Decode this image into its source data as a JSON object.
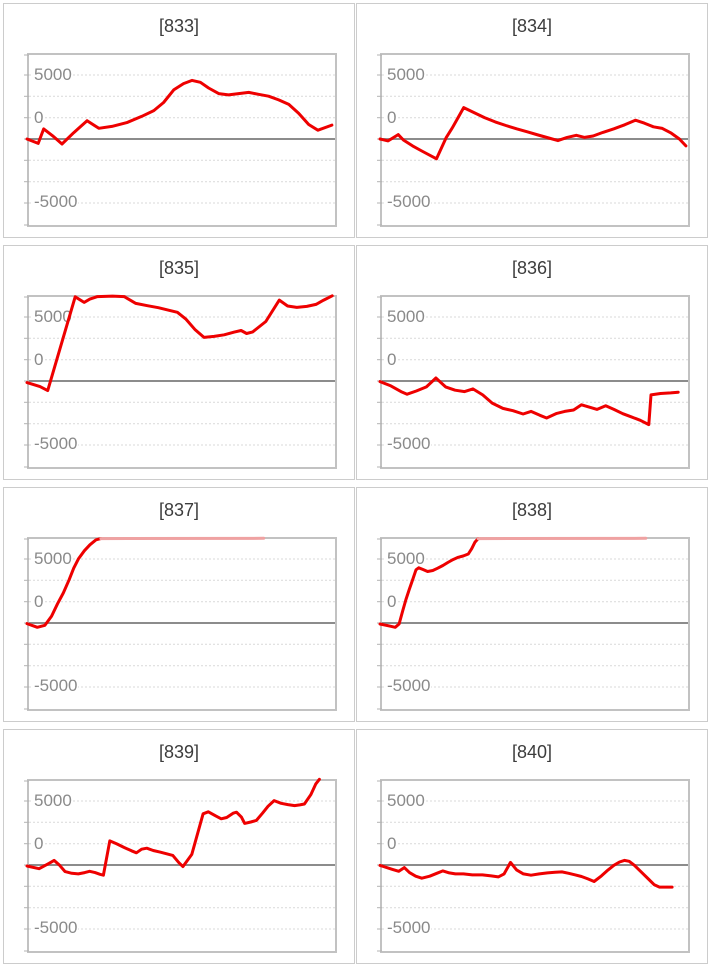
{
  "page": {
    "background": "#ffffff",
    "layout": "2x4 grid of slump line charts"
  },
  "axis": {
    "y_tick_labels": {
      "top": "5000",
      "zero": "0",
      "bottom": "-5000"
    },
    "y_tick_values": [
      5000,
      0,
      -5000
    ],
    "ylim": [
      -6800,
      6800
    ],
    "grid": "7 dashed horizontal gridlines + solid zero line",
    "legend": "none",
    "x_axis_labels": "none"
  },
  "colors": {
    "series_line": "#ee0000",
    "series_line_capped": "#efa2a2",
    "zero_line": "#8c8c8c",
    "gridline": "#d9d9d9",
    "plot_border": "#c2c2c2",
    "tick": "#b3b3b3",
    "panel_border": "#cccccc",
    "axis_label": "#8a8a8a",
    "title_text": "#3c3c3c"
  },
  "chart_data": [
    {
      "id": "833",
      "title": "[833]",
      "type": "line",
      "cap_start_index": null,
      "points": [
        [
          0,
          0
        ],
        [
          0.03,
          -350
        ],
        [
          0.048,
          800
        ],
        [
          0.077,
          250
        ],
        [
          0.108,
          -400
        ],
        [
          0.146,
          500
        ],
        [
          0.19,
          1450
        ],
        [
          0.228,
          850
        ],
        [
          0.271,
          1000
        ],
        [
          0.32,
          1300
        ],
        [
          0.369,
          1800
        ],
        [
          0.408,
          2250
        ],
        [
          0.44,
          2900
        ],
        [
          0.473,
          3900
        ],
        [
          0.505,
          4400
        ],
        [
          0.533,
          4650
        ],
        [
          0.56,
          4500
        ],
        [
          0.587,
          4050
        ],
        [
          0.62,
          3600
        ],
        [
          0.652,
          3500
        ],
        [
          0.685,
          3600
        ],
        [
          0.718,
          3700
        ],
        [
          0.75,
          3550
        ],
        [
          0.783,
          3400
        ],
        [
          0.816,
          3100
        ],
        [
          0.849,
          2750
        ],
        [
          0.881,
          2050
        ],
        [
          0.914,
          1150
        ],
        [
          0.944,
          700
        ],
        [
          0.99,
          1100
        ]
      ]
    },
    {
      "id": "834",
      "title": "[834]",
      "type": "line",
      "cap_start_index": null,
      "points": [
        [
          0,
          0
        ],
        [
          0.02,
          -150
        ],
        [
          0.053,
          350
        ],
        [
          0.07,
          -80
        ],
        [
          0.1,
          -550
        ],
        [
          0.13,
          -950
        ],
        [
          0.178,
          -1570
        ],
        [
          0.21,
          130
        ],
        [
          0.23,
          900
        ],
        [
          0.267,
          2490
        ],
        [
          0.3,
          2100
        ],
        [
          0.335,
          1700
        ],
        [
          0.37,
          1360
        ],
        [
          0.405,
          1070
        ],
        [
          0.44,
          810
        ],
        [
          0.475,
          575
        ],
        [
          0.51,
          315
        ],
        [
          0.545,
          80
        ],
        [
          0.575,
          -130
        ],
        [
          0.605,
          130
        ],
        [
          0.635,
          290
        ],
        [
          0.662,
          130
        ],
        [
          0.69,
          235
        ],
        [
          0.722,
          525
        ],
        [
          0.758,
          810
        ],
        [
          0.793,
          1125
        ],
        [
          0.828,
          1490
        ],
        [
          0.857,
          1260
        ],
        [
          0.887,
          970
        ],
        [
          0.916,
          840
        ],
        [
          0.945,
          470
        ],
        [
          0.972,
          0
        ],
        [
          0.993,
          -550
        ]
      ]
    },
    {
      "id": "835",
      "title": "[835]",
      "type": "line",
      "cap_start_index": null,
      "points": [
        [
          0,
          -130
        ],
        [
          0.036,
          -445
        ],
        [
          0.061,
          -760
        ],
        [
          0.151,
          6680
        ],
        [
          0.18,
          6235
        ],
        [
          0.199,
          6500
        ],
        [
          0.224,
          6700
        ],
        [
          0.273,
          6740
        ],
        [
          0.311,
          6700
        ],
        [
          0.349,
          6155
        ],
        [
          0.387,
          5975
        ],
        [
          0.423,
          5815
        ],
        [
          0.458,
          5610
        ],
        [
          0.485,
          5450
        ],
        [
          0.512,
          4925
        ],
        [
          0.543,
          4060
        ],
        [
          0.572,
          3460
        ],
        [
          0.605,
          3540
        ],
        [
          0.638,
          3670
        ],
        [
          0.671,
          3880
        ],
        [
          0.693,
          4010
        ],
        [
          0.711,
          3770
        ],
        [
          0.731,
          3900
        ],
        [
          0.774,
          4720
        ],
        [
          0.818,
          6420
        ],
        [
          0.845,
          5950
        ],
        [
          0.875,
          5840
        ],
        [
          0.908,
          5920
        ],
        [
          0.938,
          6080
        ],
        [
          0.963,
          6420
        ],
        [
          0.991,
          6760
        ]
      ]
    },
    {
      "id": "836",
      "title": "[836]",
      "type": "line",
      "cap_start_index": null,
      "points": [
        [
          0,
          -50
        ],
        [
          0.029,
          -390
        ],
        [
          0.062,
          -840
        ],
        [
          0.082,
          -1050
        ],
        [
          0.112,
          -790
        ],
        [
          0.145,
          -470
        ],
        [
          0.176,
          235
        ],
        [
          0.208,
          -470
        ],
        [
          0.239,
          -730
        ],
        [
          0.27,
          -840
        ],
        [
          0.297,
          -630
        ],
        [
          0.329,
          -1100
        ],
        [
          0.36,
          -1755
        ],
        [
          0.395,
          -2175
        ],
        [
          0.428,
          -2360
        ],
        [
          0.461,
          -2620
        ],
        [
          0.487,
          -2410
        ],
        [
          0.516,
          -2725
        ],
        [
          0.538,
          -2935
        ],
        [
          0.571,
          -2570
        ],
        [
          0.597,
          -2410
        ],
        [
          0.626,
          -2305
        ],
        [
          0.652,
          -1885
        ],
        [
          0.681,
          -2095
        ],
        [
          0.703,
          -2255
        ],
        [
          0.731,
          -1965
        ],
        [
          0.758,
          -2255
        ],
        [
          0.787,
          -2595
        ],
        [
          0.813,
          -2830
        ],
        [
          0.844,
          -3120
        ],
        [
          0.872,
          -3460
        ],
        [
          0.879,
          -1100
        ],
        [
          0.91,
          -995
        ],
        [
          0.943,
          -945
        ],
        [
          0.968,
          -890
        ]
      ]
    },
    {
      "id": "837",
      "title": "[837]",
      "type": "line",
      "cap_start_index": 12,
      "points": [
        [
          0,
          -50
        ],
        [
          0.027,
          -340
        ],
        [
          0.052,
          -180
        ],
        [
          0.074,
          550
        ],
        [
          0.093,
          1520
        ],
        [
          0.112,
          2380
        ],
        [
          0.131,
          3430
        ],
        [
          0.146,
          4350
        ],
        [
          0.162,
          5110
        ],
        [
          0.181,
          5740
        ],
        [
          0.199,
          6210
        ],
        [
          0.219,
          6600
        ],
        [
          0.235,
          6700
        ],
        [
          0.767,
          6720
        ]
      ]
    },
    {
      "id": "838",
      "title": "[838]",
      "type": "line",
      "cap_start_index": 22,
      "points": [
        [
          0,
          -80
        ],
        [
          0.029,
          -260
        ],
        [
          0.043,
          -340
        ],
        [
          0.056,
          -80
        ],
        [
          0.068,
          990
        ],
        [
          0.078,
          1860
        ],
        [
          0.089,
          2650
        ],
        [
          0.101,
          3490
        ],
        [
          0.111,
          4220
        ],
        [
          0.12,
          4380
        ],
        [
          0.134,
          4250
        ],
        [
          0.149,
          4090
        ],
        [
          0.166,
          4170
        ],
        [
          0.182,
          4350
        ],
        [
          0.199,
          4560
        ],
        [
          0.215,
          4800
        ],
        [
          0.232,
          5030
        ],
        [
          0.249,
          5215
        ],
        [
          0.265,
          5320
        ],
        [
          0.282,
          5480
        ],
        [
          0.293,
          5900
        ],
        [
          0.304,
          6420
        ],
        [
          0.314,
          6700
        ],
        [
          0.862,
          6720
        ]
      ]
    },
    {
      "id": "839",
      "title": "[839]",
      "type": "line",
      "cap_start_index": null,
      "points": [
        [
          0,
          -80
        ],
        [
          0.033,
          -290
        ],
        [
          0.065,
          130
        ],
        [
          0.082,
          365
        ],
        [
          0.1,
          -25
        ],
        [
          0.118,
          -525
        ],
        [
          0.14,
          -655
        ],
        [
          0.161,
          -710
        ],
        [
          0.182,
          -605
        ],
        [
          0.198,
          -500
        ],
        [
          0.216,
          -605
        ],
        [
          0.232,
          -735
        ],
        [
          0.243,
          -810
        ],
        [
          0.264,
          1910
        ],
        [
          0.287,
          1675
        ],
        [
          0.311,
          1390
        ],
        [
          0.335,
          1125
        ],
        [
          0.351,
          970
        ],
        [
          0.368,
          1255
        ],
        [
          0.385,
          1335
        ],
        [
          0.406,
          1150
        ],
        [
          0.428,
          1020
        ],
        [
          0.45,
          890
        ],
        [
          0.47,
          760
        ],
        [
          0.49,
          180
        ],
        [
          0.503,
          -130
        ],
        [
          0.532,
          840
        ],
        [
          0.569,
          4060
        ],
        [
          0.586,
          4220
        ],
        [
          0.611,
          3880
        ],
        [
          0.628,
          3670
        ],
        [
          0.646,
          3770
        ],
        [
          0.667,
          4110
        ],
        [
          0.678,
          4190
        ],
        [
          0.694,
          3800
        ],
        [
          0.705,
          3300
        ],
        [
          0.725,
          3410
        ],
        [
          0.743,
          3540
        ],
        [
          0.763,
          4110
        ],
        [
          0.781,
          4660
        ],
        [
          0.801,
          5110
        ],
        [
          0.824,
          4900
        ],
        [
          0.846,
          4795
        ],
        [
          0.868,
          4715
        ],
        [
          0.885,
          4770
        ],
        [
          0.9,
          4845
        ],
        [
          0.921,
          5580
        ],
        [
          0.937,
          6420
        ],
        [
          0.949,
          6800
        ]
      ]
    },
    {
      "id": "840",
      "title": "[840]",
      "type": "line",
      "cap_start_index": null,
      "points": [
        [
          0,
          -30
        ],
        [
          0.033,
          -340
        ],
        [
          0.055,
          -500
        ],
        [
          0.073,
          -210
        ],
        [
          0.09,
          -600
        ],
        [
          0.11,
          -890
        ],
        [
          0.13,
          -1050
        ],
        [
          0.156,
          -890
        ],
        [
          0.179,
          -655
        ],
        [
          0.199,
          -470
        ],
        [
          0.22,
          -630
        ],
        [
          0.24,
          -710
        ],
        [
          0.266,
          -710
        ],
        [
          0.295,
          -785
        ],
        [
          0.328,
          -785
        ],
        [
          0.357,
          -865
        ],
        [
          0.38,
          -945
        ],
        [
          0.399,
          -710
        ],
        [
          0.42,
          210
        ],
        [
          0.44,
          -390
        ],
        [
          0.462,
          -710
        ],
        [
          0.487,
          -810
        ],
        [
          0.514,
          -710
        ],
        [
          0.541,
          -630
        ],
        [
          0.566,
          -575
        ],
        [
          0.588,
          -550
        ],
        [
          0.61,
          -655
        ],
        [
          0.632,
          -785
        ],
        [
          0.652,
          -915
        ],
        [
          0.673,
          -1100
        ],
        [
          0.693,
          -1310
        ],
        [
          0.717,
          -865
        ],
        [
          0.739,
          -390
        ],
        [
          0.758,
          -25
        ],
        [
          0.776,
          235
        ],
        [
          0.792,
          365
        ],
        [
          0.808,
          290
        ],
        [
          0.825,
          -25
        ],
        [
          0.847,
          -550
        ],
        [
          0.869,
          -1075
        ],
        [
          0.89,
          -1570
        ],
        [
          0.907,
          -1755
        ],
        [
          0.948,
          -1755
        ]
      ]
    }
  ]
}
